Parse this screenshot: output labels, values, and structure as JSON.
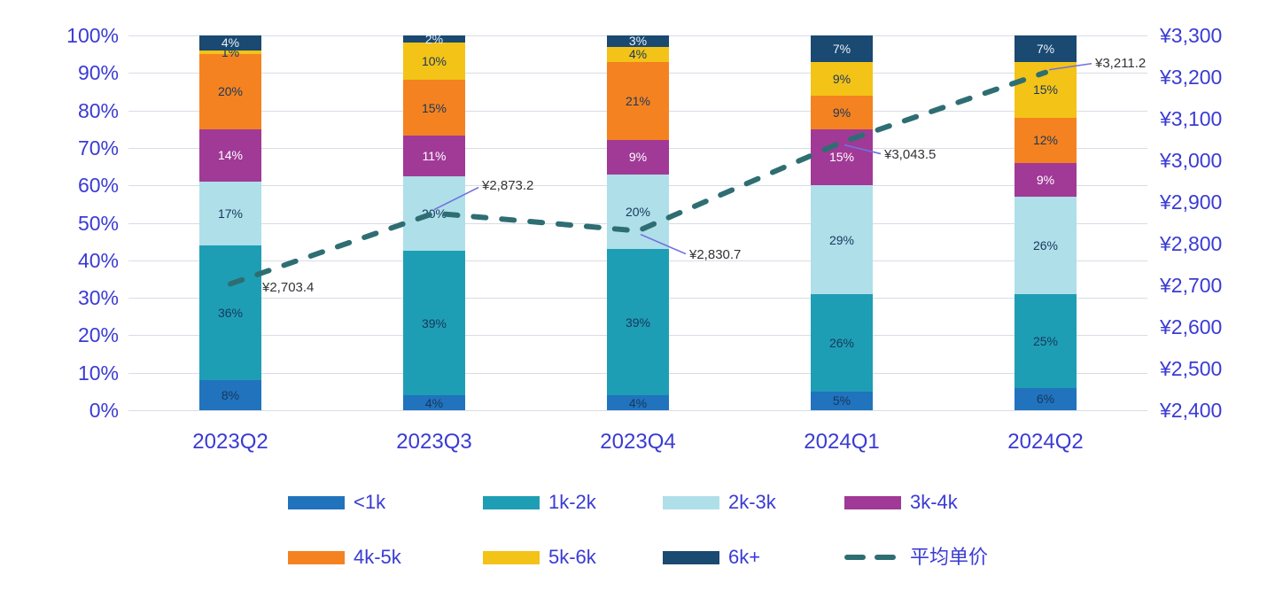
{
  "chart_data": {
    "type": "bar",
    "subtype": "stacked-100-percent-with-line",
    "categories": [
      "2023Q2",
      "2023Q3",
      "2023Q4",
      "2024Q1",
      "2024Q2"
    ],
    "series": [
      {
        "name": "<1k",
        "color": "#2173BE",
        "label_color": "#17375E",
        "values": [
          8,
          4,
          4,
          5,
          6
        ]
      },
      {
        "name": "1k-2k",
        "color": "#1E9EB4",
        "label_color": "#17375E",
        "values": [
          36,
          39,
          39,
          26,
          25
        ]
      },
      {
        "name": "2k-3k",
        "color": "#AFDFE9",
        "label_color": "#17375E",
        "values": [
          17,
          20,
          20,
          29,
          26
        ]
      },
      {
        "name": "3k-4k",
        "color": "#A03A96",
        "label_color": "#FFFFFF",
        "values": [
          14,
          11,
          9,
          15,
          9
        ]
      },
      {
        "name": "4k-5k",
        "color": "#F58220",
        "label_color": "#17375E",
        "values": [
          20,
          15,
          21,
          9,
          12
        ]
      },
      {
        "name": "5k-6k",
        "color": "#F3C317",
        "label_color": "#17375E",
        "values": [
          1,
          10,
          4,
          9,
          15
        ]
      },
      {
        "name": "6k+",
        "color": "#1A4971",
        "label_color": "#EAF2F8",
        "values": [
          4,
          2,
          3,
          7,
          7
        ]
      }
    ],
    "line_series": {
      "name": "平均单价",
      "color": "#2E6E73",
      "values": [
        2703.4,
        2873.2,
        2830.7,
        3043.5,
        3211.2
      ],
      "labels": [
        "¥2,703.4",
        "¥2,873.2",
        "¥2,830.7",
        "¥3,043.5",
        "¥3,211.2"
      ]
    },
    "left_axis": {
      "unit": "%",
      "min": 0,
      "max": 100,
      "ticks": [
        "100%",
        "90%",
        "80%",
        "70%",
        "60%",
        "50%",
        "40%",
        "30%",
        "20%",
        "10%",
        "0%"
      ]
    },
    "right_axis": {
      "unit": "¥",
      "min": 2400,
      "max": 3300,
      "ticks": [
        "¥3,300",
        "¥3,200",
        "¥3,100",
        "¥3,000",
        "¥2,900",
        "¥2,800",
        "¥2,700",
        "¥2,600",
        "¥2,500",
        "¥2,400"
      ]
    },
    "legend": {
      "position": "bottom",
      "rows": 2
    },
    "grid": true,
    "colors": {
      "axis": "#3A3BD4",
      "grid": "#D8DCE6",
      "annotation": "#333333",
      "leader": "#7070E0"
    }
  }
}
